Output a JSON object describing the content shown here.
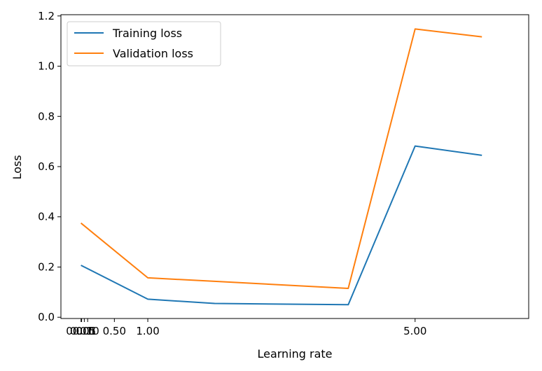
{
  "chart_data": {
    "type": "line",
    "xlabel": "Learning rate",
    "ylabel": "Loss",
    "xlim": [
      -0.3,
      6.7
    ],
    "ylim": [
      -0.005,
      1.205
    ],
    "xticks": [
      {
        "value": 0.001,
        "label": "0.001"
      },
      {
        "value": 0.01,
        "label": "0.01"
      },
      {
        "value": 0.05,
        "label": "0.05"
      },
      {
        "value": 0.1,
        "label": "0.10"
      },
      {
        "value": 0.5,
        "label": "0.50"
      },
      {
        "value": 1.0,
        "label": "1.00"
      },
      {
        "value": 5.0,
        "label": "5.00"
      }
    ],
    "yticks": [
      {
        "value": 0.0,
        "label": "0.0"
      },
      {
        "value": 0.2,
        "label": "0.2"
      },
      {
        "value": 0.4,
        "label": "0.4"
      },
      {
        "value": 0.6,
        "label": "0.6"
      },
      {
        "value": 0.8,
        "label": "0.8"
      },
      {
        "value": 1.0,
        "label": "1.0"
      },
      {
        "value": 1.2,
        "label": "1.2"
      }
    ],
    "x": [
      0.0,
      1.0,
      2.0,
      4.0,
      5.0,
      6.0
    ],
    "series": [
      {
        "name": "Training loss",
        "color": "#1f77b4",
        "values": [
          0.207,
          0.072,
          0.055,
          0.05,
          0.682,
          0.645
        ]
      },
      {
        "name": "Validation loss",
        "color": "#ff7f0e",
        "values": [
          0.375,
          0.157,
          0.143,
          0.115,
          1.148,
          1.117
        ]
      }
    ],
    "legend": "top-left",
    "grid": false
  }
}
